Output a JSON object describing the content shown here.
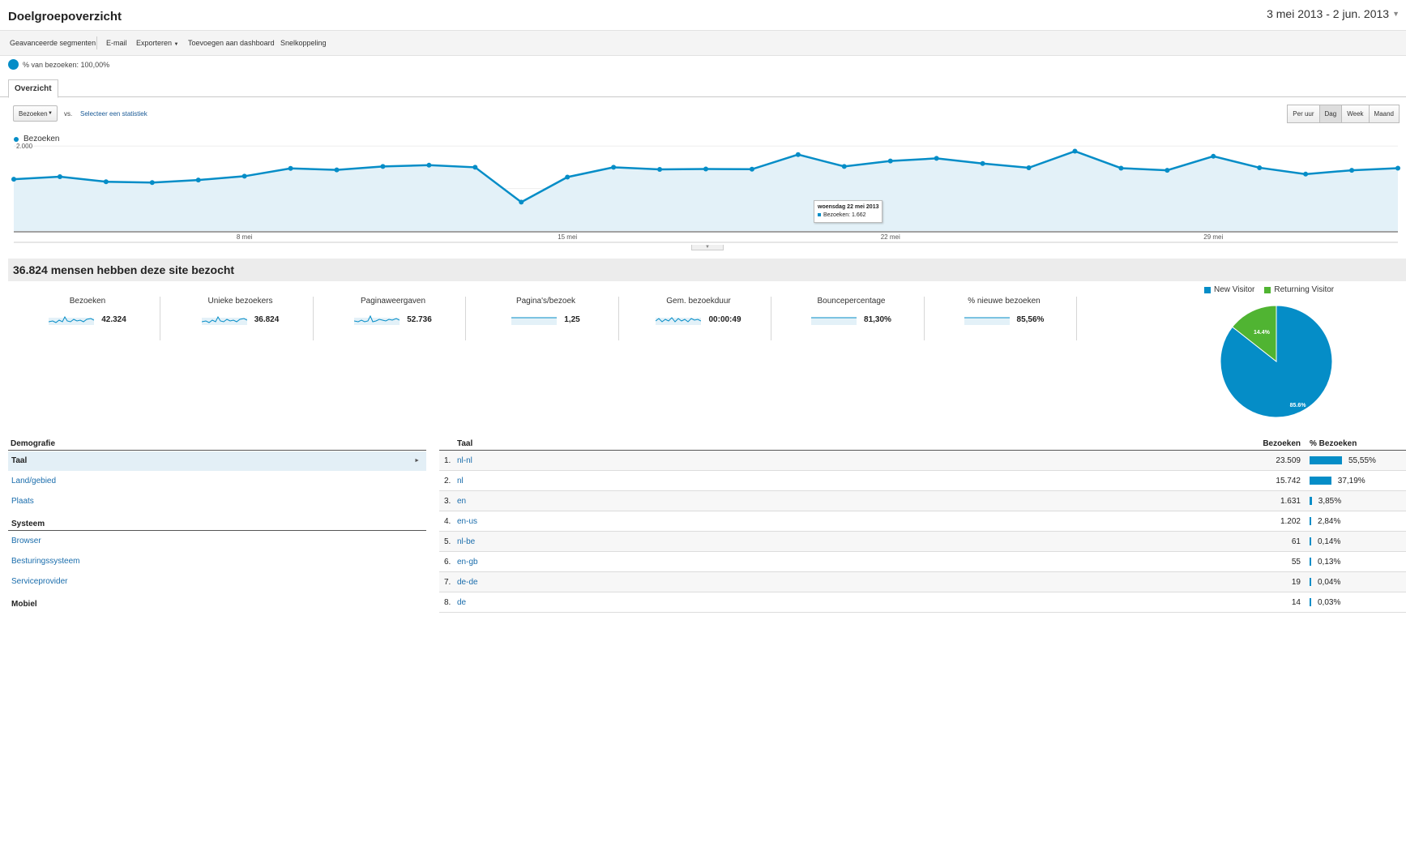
{
  "header": {
    "title": "Doelgroepoverzicht",
    "date_range": "3 mei 2013 - 2 jun. 2013"
  },
  "toolbar": {
    "items": [
      "Geavanceerde segmenten",
      "E-mail",
      "Exporteren",
      "Toevoegen aan dashboard",
      "Snelkoppeling"
    ]
  },
  "segment": {
    "label": "% van bezoeken: 100,00%"
  },
  "tabs": {
    "overview": "Overzicht"
  },
  "controls": {
    "metric": "Bezoeken",
    "vs": "vs.",
    "select_stat": "Selecteer een statistiek",
    "granularity": [
      "Per uur",
      "Dag",
      "Week",
      "Maand"
    ],
    "granularity_active": "Dag"
  },
  "chart_data": {
    "type": "area",
    "series": [
      {
        "name": "Bezoeken",
        "values": [
          1220,
          1280,
          1160,
          1140,
          1200,
          1290,
          1475,
          1440,
          1520,
          1550,
          1500,
          680,
          1270,
          1500,
          1450,
          1460,
          1455,
          1800,
          1520,
          1650,
          1710,
          1590,
          1490,
          1880,
          1480,
          1430,
          1760,
          1490,
          1340,
          1430,
          1480
        ]
      }
    ],
    "yticks": [
      1000,
      2000
    ],
    "ytick_labels": [
      "1.000",
      "2.000"
    ],
    "xtick_labels": [
      "8 mei",
      "15 mei",
      "22 mei",
      "29 mei"
    ],
    "xtick_index": [
      5,
      12,
      19,
      26
    ],
    "ylim": [
      0,
      2100
    ],
    "color": "#058dc7",
    "fill": "#e3f1f8",
    "tooltip": {
      "title": "woensdag 22 mei 2013",
      "line": "Bezoeken: 1.662"
    }
  },
  "summary": {
    "title": "36.824 mensen hebben deze site bezocht",
    "kpis": [
      {
        "label": "Bezoeken",
        "value": "42.324"
      },
      {
        "label": "Unieke bezoekers",
        "value": "36.824"
      },
      {
        "label": "Paginaweergaven",
        "value": "52.736"
      },
      {
        "label": "Pagina's/bezoek",
        "value": "1,25"
      },
      {
        "label": "Gem. bezoekduur",
        "value": "00:00:49"
      },
      {
        "label": "Bouncepercentage",
        "value": "81,30%"
      },
      {
        "label": "% nieuwe bezoeken",
        "value": "85,56%"
      }
    ]
  },
  "pie": {
    "legend": [
      {
        "name": "New Visitor",
        "color": "#058dc7"
      },
      {
        "name": "Returning Visitor",
        "color": "#50b432"
      }
    ],
    "slices": [
      {
        "name": "New Visitor",
        "value": 85.6,
        "label": "85.6%"
      },
      {
        "name": "Returning Visitor",
        "value": 14.4,
        "label": "14.4%"
      }
    ]
  },
  "demographics": {
    "header": "Demografie",
    "items": [
      "Taal",
      "Land/gebied",
      "Plaats"
    ],
    "system_header": "Systeem",
    "system_items": [
      "Browser",
      "Besturingssysteem",
      "Serviceprovider"
    ],
    "mobile_header": "Mobiel"
  },
  "table": {
    "headers": {
      "lang": "Taal",
      "visits": "Bezoeken",
      "pct": "% Bezoeken"
    },
    "rows": [
      {
        "num": "1.",
        "lang": "nl-nl",
        "visits": "23.509",
        "pct": "55,55%",
        "share": 55.55
      },
      {
        "num": "2.",
        "lang": "nl",
        "visits": "15.742",
        "pct": "37,19%",
        "share": 37.19
      },
      {
        "num": "3.",
        "lang": "en",
        "visits": "1.631",
        "pct": "3,85%",
        "share": 3.85
      },
      {
        "num": "4.",
        "lang": "en-us",
        "visits": "1.202",
        "pct": "2,84%",
        "share": 2.84
      },
      {
        "num": "5.",
        "lang": "nl-be",
        "visits": "61",
        "pct": "0,14%",
        "share": 0.14
      },
      {
        "num": "6.",
        "lang": "en-gb",
        "visits": "55",
        "pct": "0,13%",
        "share": 0.13
      },
      {
        "num": "7.",
        "lang": "de-de",
        "visits": "19",
        "pct": "0,04%",
        "share": 0.04
      },
      {
        "num": "8.",
        "lang": "de",
        "visits": "14",
        "pct": "0,03%",
        "share": 0.03
      }
    ]
  }
}
